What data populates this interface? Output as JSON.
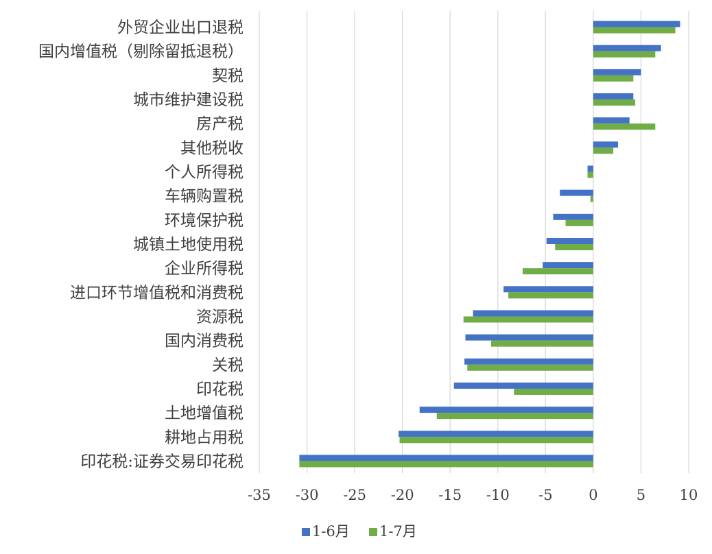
{
  "chart_data": {
    "type": "bar",
    "orientation": "horizontal",
    "categories": [
      "外贸企业出口退税",
      "国内增值税（剔除留抵退税）",
      "契税",
      "城市维护建设税",
      "房产税",
      "其他税收",
      "个人所得税",
      "车辆购置税",
      "环境保护税",
      "城镇土地使用税",
      "企业所得税",
      "进口环节增值税和消费税",
      "资源税",
      "国内消费税",
      "关税",
      "印花税",
      "土地增值税",
      "耕地占用税",
      "印花税:证券交易印花税"
    ],
    "series": [
      {
        "name": "1-6月",
        "color": "#4472c4",
        "values": [
          9.1,
          7.1,
          5.0,
          4.2,
          3.8,
          2.6,
          -0.6,
          -3.5,
          -4.2,
          -4.9,
          -5.3,
          -9.4,
          -12.6,
          -13.4,
          -13.5,
          -14.6,
          -18.2,
          -20.4,
          -30.8
        ]
      },
      {
        "name": "1-7月",
        "color": "#70ad47",
        "values": [
          8.6,
          6.5,
          4.2,
          4.4,
          6.5,
          2.1,
          -0.6,
          -0.3,
          -2.9,
          -4.0,
          -7.4,
          -8.9,
          -13.6,
          -10.7,
          -13.2,
          -8.3,
          -16.4,
          -20.3,
          -30.8
        ]
      }
    ],
    "xlim": [
      -35,
      10
    ],
    "xticks": [
      -35,
      -30,
      -25,
      -20,
      -15,
      -10,
      -5,
      0,
      5,
      10
    ],
    "grid": "vertical",
    "legend_position": "bottom"
  }
}
